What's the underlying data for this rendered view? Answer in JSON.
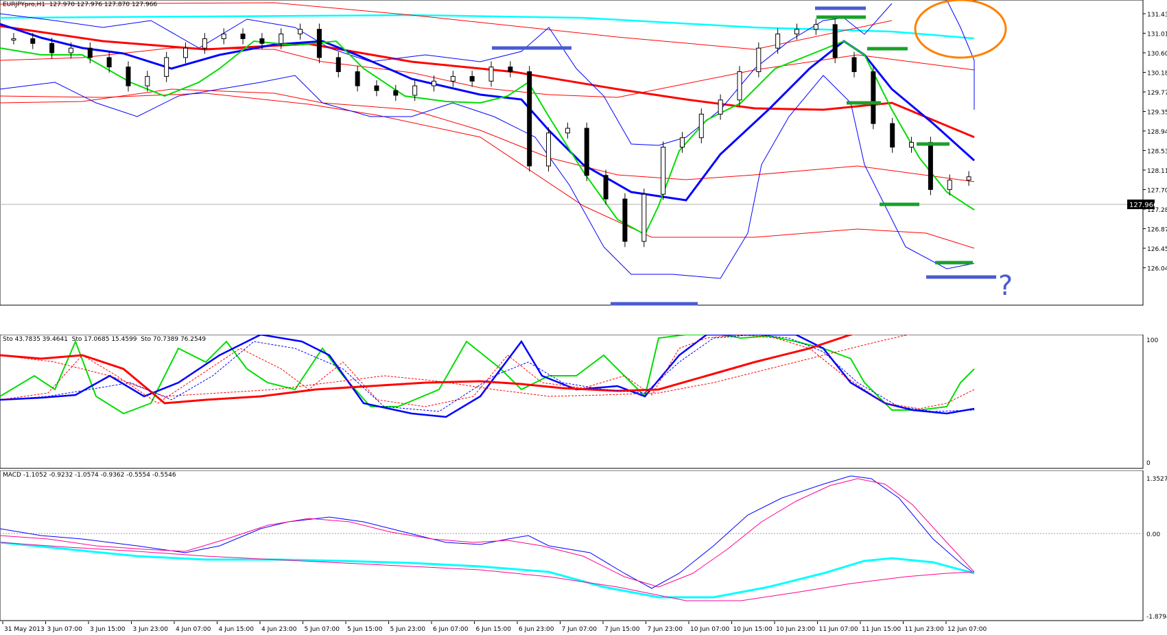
{
  "main_pane": {
    "label": "EURJPYpro,H1  127.970 127.976 127.870 127.966",
    "price_ticks": [
      "131.430",
      "131.010",
      "130.600",
      "130.180",
      "129.770",
      "129.350",
      "128.940",
      "128.530",
      "128.110",
      "127.700",
      "127.280",
      "126.870",
      "126.450",
      "126.040"
    ],
    "current_price": "127.966",
    "annotation_question": "?"
  },
  "stoch_pane": {
    "label": "Sto 43.7835 39.4641  Sto 17.0685 15.4599  Sto 70.7389 76.2549",
    "scale_top": "100",
    "scale_bottom": "0"
  },
  "macd_pane": {
    "label": "MACD -1.1052 -0.9232 -1.0574 -0.9362 -0.5554 -0.5546",
    "scale_top": "1.3527",
    "scale_mid": "0.00",
    "scale_bottom": "-1.8794"
  },
  "time_axis": {
    "labels": [
      "31 May 2013",
      "3 Jun 07:00",
      "3 Jun 15:00",
      "3 Jun 23:00",
      "4 Jun 07:00",
      "4 Jun 15:00",
      "4 Jun 23:00",
      "5 Jun 07:00",
      "5 Jun 15:00",
      "5 Jun 23:00",
      "6 Jun 07:00",
      "6 Jun 15:00",
      "6 Jun 23:00",
      "7 Jun 07:00",
      "7 Jun 15:00",
      "7 Jun 23:00",
      "10 Jun 07:00",
      "10 Jun 15:00",
      "10 Jun 23:00",
      "11 Jun 07:00",
      "11 Jun 15:00",
      "11 Jun 23:00",
      "12 Jun 07:00"
    ]
  },
  "colors": {
    "bollinger_blue": "#0000ff",
    "envelope_red": "#ff0000",
    "fast_ma_green": "#00dd00",
    "slow_ma_cyan": "#00ffff",
    "orange_marker": "#ff8000",
    "support_green": "#1aa02a",
    "support_blue": "#4a5bd0",
    "macd_pink": "#ff0090"
  },
  "chart_data": {
    "type": "line",
    "title": "EURJPYpro,H1",
    "symbol": "EURJPYpro",
    "timeframe": "H1",
    "ohlc_last": {
      "open": 127.97,
      "high": 127.976,
      "low": 127.87,
      "close": 127.966
    },
    "ylim": [
      126.04,
      131.43
    ],
    "x_labels": [
      "31 May 2013",
      "3 Jun 07:00",
      "3 Jun 15:00",
      "3 Jun 23:00",
      "4 Jun 07:00",
      "4 Jun 15:00",
      "4 Jun 23:00",
      "5 Jun 07:00",
      "5 Jun 15:00",
      "5 Jun 23:00",
      "6 Jun 07:00",
      "6 Jun 15:00",
      "6 Jun 23:00",
      "7 Jun 07:00",
      "7 Jun 15:00",
      "7 Jun 23:00",
      "10 Jun 07:00",
      "10 Jun 15:00",
      "10 Jun 23:00",
      "11 Jun 07:00",
      "11 Jun 15:00",
      "11 Jun 23:00",
      "12 Jun 07:00"
    ],
    "close_series": [
      130.9,
      130.8,
      130.6,
      130.7,
      130.5,
      130.3,
      129.9,
      130.1,
      130.5,
      130.7,
      130.9,
      131.0,
      130.9,
      130.8,
      131.0,
      131.1,
      130.5,
      130.2,
      129.9,
      129.8,
      129.7,
      129.9,
      130.0,
      130.1,
      130.0,
      130.3,
      130.2,
      128.2,
      128.9,
      129.0,
      128.0,
      127.5,
      126.6,
      127.6,
      128.6,
      128.8,
      129.3,
      129.6,
      130.2,
      130.7,
      131.0,
      131.1,
      131.2,
      130.5,
      130.2,
      129.1,
      128.6,
      128.7,
      127.7,
      127.9,
      127.97
    ],
    "indicators": {
      "stochastic": [
        {
          "name": "Sto",
          "main": 43.7835,
          "signal": 39.4641
        },
        {
          "name": "Sto",
          "main": 17.0685,
          "signal": 15.4599
        },
        {
          "name": "Sto",
          "main": 70.7389,
          "signal": 76.2549
        }
      ],
      "stochastic_range": [
        0,
        100
      ],
      "macd": [
        -1.1052,
        -0.9232,
        -1.0574,
        -0.9362,
        -0.5554,
        -0.5546
      ],
      "macd_range": [
        -1.8794,
        1.3527
      ]
    }
  }
}
